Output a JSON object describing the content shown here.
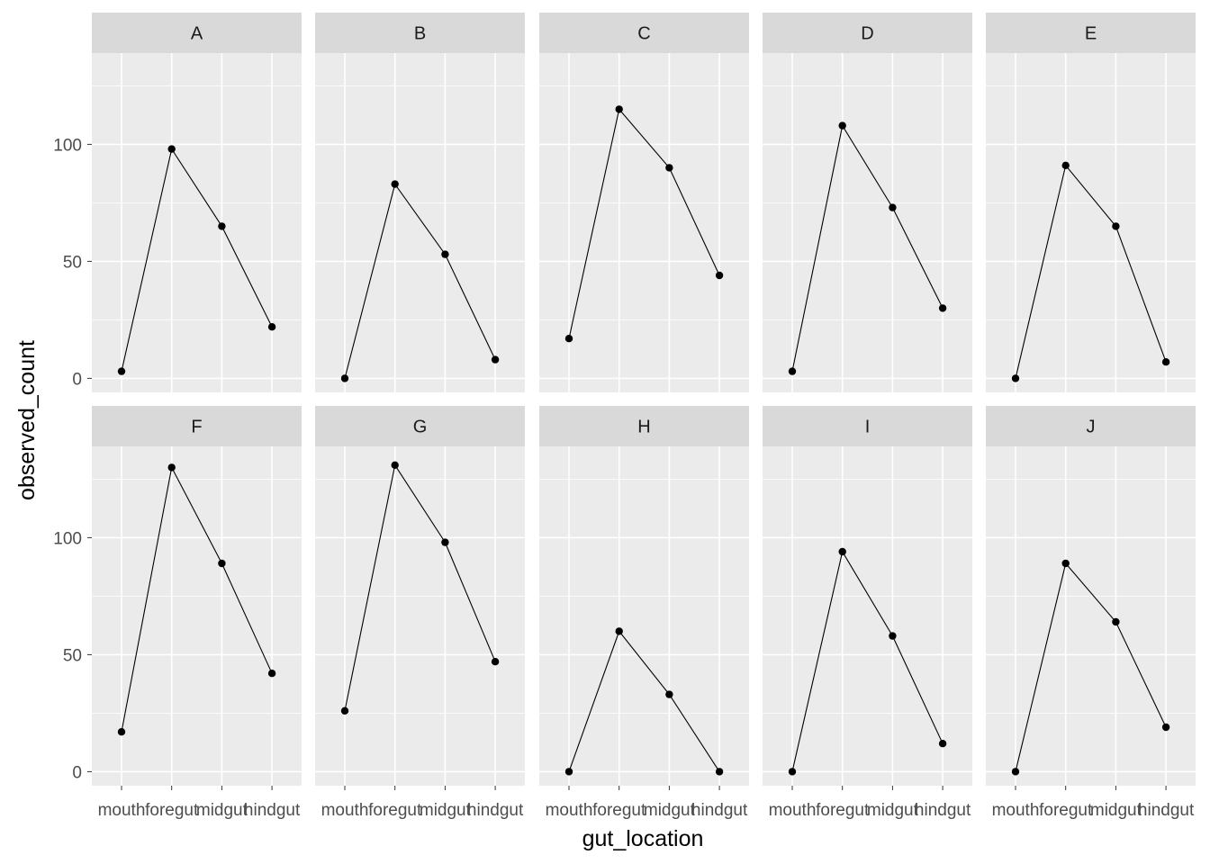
{
  "chart_data": {
    "type": "line",
    "xlabel": "gut_location",
    "ylabel": "observed_count",
    "categories": [
      "mouth",
      "foregut",
      "midgut",
      "hindgut"
    ],
    "yticks": [
      0,
      50,
      100
    ],
    "ylim": [
      -6,
      139
    ],
    "grid": true,
    "facets": [
      {
        "name": "A",
        "values": [
          3,
          98,
          65,
          22
        ]
      },
      {
        "name": "B",
        "values": [
          0,
          83,
          53,
          8
        ]
      },
      {
        "name": "C",
        "values": [
          17,
          115,
          90,
          44
        ]
      },
      {
        "name": "D",
        "values": [
          3,
          108,
          73,
          30
        ]
      },
      {
        "name": "E",
        "values": [
          0,
          91,
          65,
          7
        ]
      },
      {
        "name": "F",
        "values": [
          17,
          130,
          89,
          42
        ]
      },
      {
        "name": "G",
        "values": [
          26,
          131,
          98,
          47
        ]
      },
      {
        "name": "H",
        "values": [
          0,
          60,
          33,
          0
        ]
      },
      {
        "name": "I",
        "values": [
          0,
          94,
          58,
          12
        ]
      },
      {
        "name": "J",
        "values": [
          0,
          89,
          64,
          19
        ]
      }
    ]
  },
  "colors": {
    "panel_background": "#ebebeb",
    "strip_background": "#d9d9d9",
    "grid_line": "#ffffff",
    "series": "#000000",
    "tick_mark": "#333333"
  }
}
